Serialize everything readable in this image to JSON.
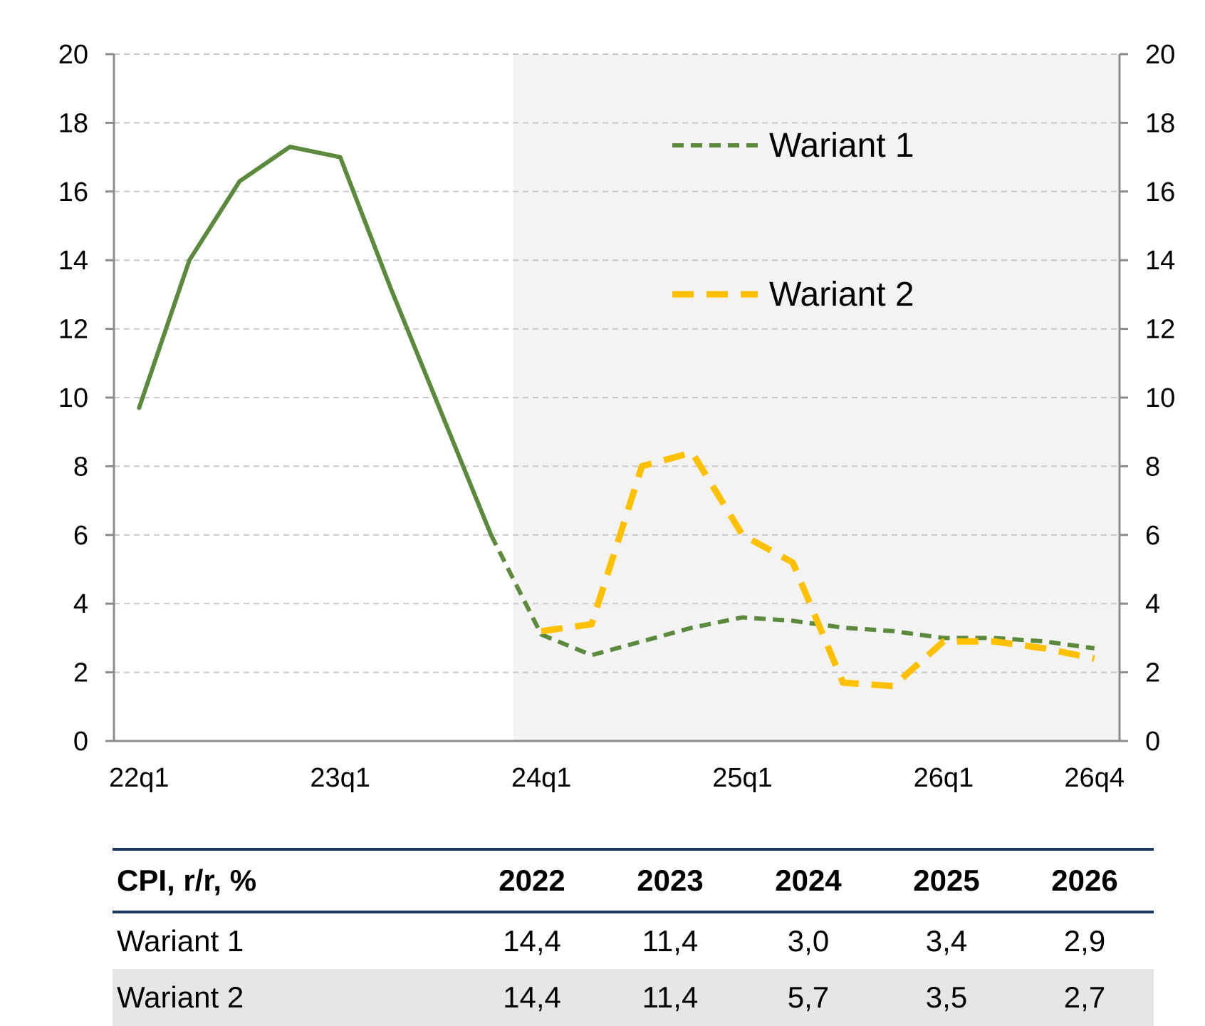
{
  "chart_data": {
    "type": "line",
    "title": "",
    "xlabel": "",
    "ylabel": "",
    "ylim": [
      0,
      20
    ],
    "yticks": [
      0,
      2,
      4,
      6,
      8,
      10,
      12,
      14,
      16,
      18,
      20
    ],
    "y_axis_sides": "left and right",
    "grid": "horizontal dashed",
    "legend_position": "top-right",
    "forecast_shading_start": "24q1",
    "categories": [
      "22q1",
      "22q2",
      "22q3",
      "22q4",
      "23q1",
      "23q2",
      "23q3",
      "23q4",
      "24q1",
      "24q2",
      "24q3",
      "24q4",
      "25q1",
      "25q2",
      "25q3",
      "25q4",
      "26q1",
      "26q2",
      "26q3",
      "26q4"
    ],
    "x_tick_labels": [
      "22q1",
      "23q1",
      "24q1",
      "25q1",
      "26q1",
      "26q4"
    ],
    "series": [
      {
        "name": "Wariant 1",
        "color": "#5b8a3c",
        "style": "solid then dashed from 24q1",
        "values": [
          9.7,
          14.0,
          16.3,
          17.3,
          17.0,
          13.2,
          9.6,
          6.0,
          3.1,
          2.5,
          2.9,
          3.3,
          3.6,
          3.5,
          3.3,
          3.2,
          3.0,
          3.0,
          2.9,
          2.7
        ]
      },
      {
        "name": "Wariant 2",
        "color": "#ffc000",
        "style": "dashed",
        "values": [
          null,
          null,
          null,
          null,
          null,
          null,
          null,
          null,
          3.2,
          3.4,
          8.0,
          8.4,
          6.0,
          5.2,
          1.7,
          1.6,
          2.9,
          2.9,
          2.7,
          2.4
        ]
      }
    ]
  },
  "table": {
    "header": [
      "CPI, r/r, %",
      "2022",
      "2023",
      "2024",
      "2025",
      "2026"
    ],
    "rows": [
      [
        "Wariant 1",
        "14,4",
        "11,4",
        "3,0",
        "3,4",
        "2,9"
      ],
      [
        "Wariant 2",
        "14,4",
        "11,4",
        "5,7",
        "3,5",
        "2,7"
      ]
    ]
  }
}
